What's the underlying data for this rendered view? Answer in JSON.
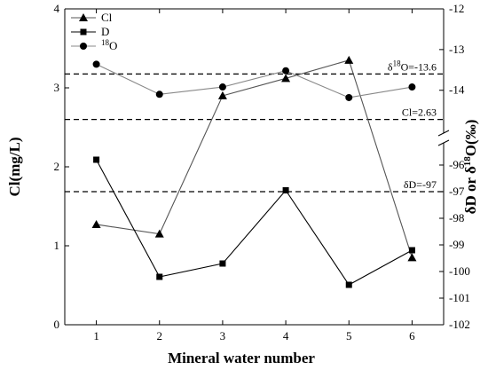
{
  "chart_data": {
    "type": "line",
    "x": [
      1,
      2,
      3,
      4,
      5,
      6
    ],
    "xticks": [
      "1",
      "2",
      "3",
      "4",
      "5",
      "6"
    ],
    "xlabel": "Mineral water number",
    "xlim": [
      0.5,
      6.5
    ],
    "y_left": {
      "label": "Cl(mg/L)",
      "range": [
        0,
        4
      ],
      "ticks": [
        "0",
        "1",
        "2",
        "3",
        "4"
      ]
    },
    "y_right": {
      "label": "δD or δ18O(‰)",
      "upper_segment": {
        "range": [
          -14.9,
          -12
        ],
        "ticks": [
          "-12",
          "-13",
          "-14"
        ]
      },
      "lower_segment": {
        "range": [
          -102,
          -95.4
        ],
        "ticks": [
          "-96",
          "-97",
          "-98",
          "-99",
          "-100",
          "-101",
          "-102"
        ]
      },
      "break": true
    },
    "series": [
      {
        "name": "Cl",
        "marker": "triangle",
        "color": "#555555",
        "axis": "left",
        "values": [
          1.27,
          1.15,
          2.9,
          3.12,
          3.35,
          0.85
        ]
      },
      {
        "name": "D",
        "marker": "square",
        "color": "#000000",
        "axis": "right-lower",
        "values": [
          -95.8,
          -100.2,
          -99.7,
          -96.95,
          -100.5,
          -99.2
        ]
      },
      {
        "name": "18O",
        "marker": "circle",
        "color": "#888888",
        "axis": "right-upper",
        "values": [
          -13.36,
          -14.1,
          -13.92,
          -13.52,
          -14.18,
          -13.92
        ]
      }
    ],
    "reference_lines": [
      {
        "label": "δ18O=-13.6",
        "axis": "right-upper",
        "value": -13.6
      },
      {
        "label": "Cl=2.63",
        "axis": "left",
        "value": 2.6
      },
      {
        "label": "δD=-97",
        "axis": "right-lower",
        "value": -97
      }
    ],
    "legend_position": "top-left",
    "grid": false
  }
}
